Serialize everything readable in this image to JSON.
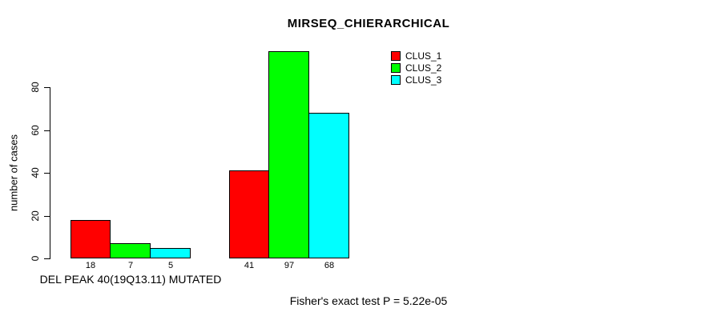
{
  "chart_data": {
    "type": "bar",
    "title": "MIRSEQ_CHIERARCHICAL",
    "ylabel": "number of cases",
    "xlabel": "",
    "categories": [
      "DEL PEAK 40(19Q13.11) MUTATED",
      ""
    ],
    "series": [
      {
        "name": "CLUS_1",
        "color": "#ff0000",
        "values": [
          18,
          41
        ]
      },
      {
        "name": "CLUS_2",
        "color": "#00ff00",
        "values": [
          7,
          97
        ]
      },
      {
        "name": "CLUS_3",
        "color": "#00ffff",
        "values": [
          5,
          68
        ]
      }
    ],
    "bar_value_labels": [
      [
        18,
        7,
        5
      ],
      [
        41,
        97,
        68
      ]
    ],
    "y_ticks": [
      0,
      20,
      40,
      60,
      80
    ],
    "ylim": [
      0,
      97
    ],
    "grid": false,
    "legend_position": "top-right",
    "annotation": "Fisher's exact test P = 5.22e-05",
    "colors": {
      "axis": "#000000",
      "text": "#000000",
      "background": "#ffffff"
    }
  }
}
